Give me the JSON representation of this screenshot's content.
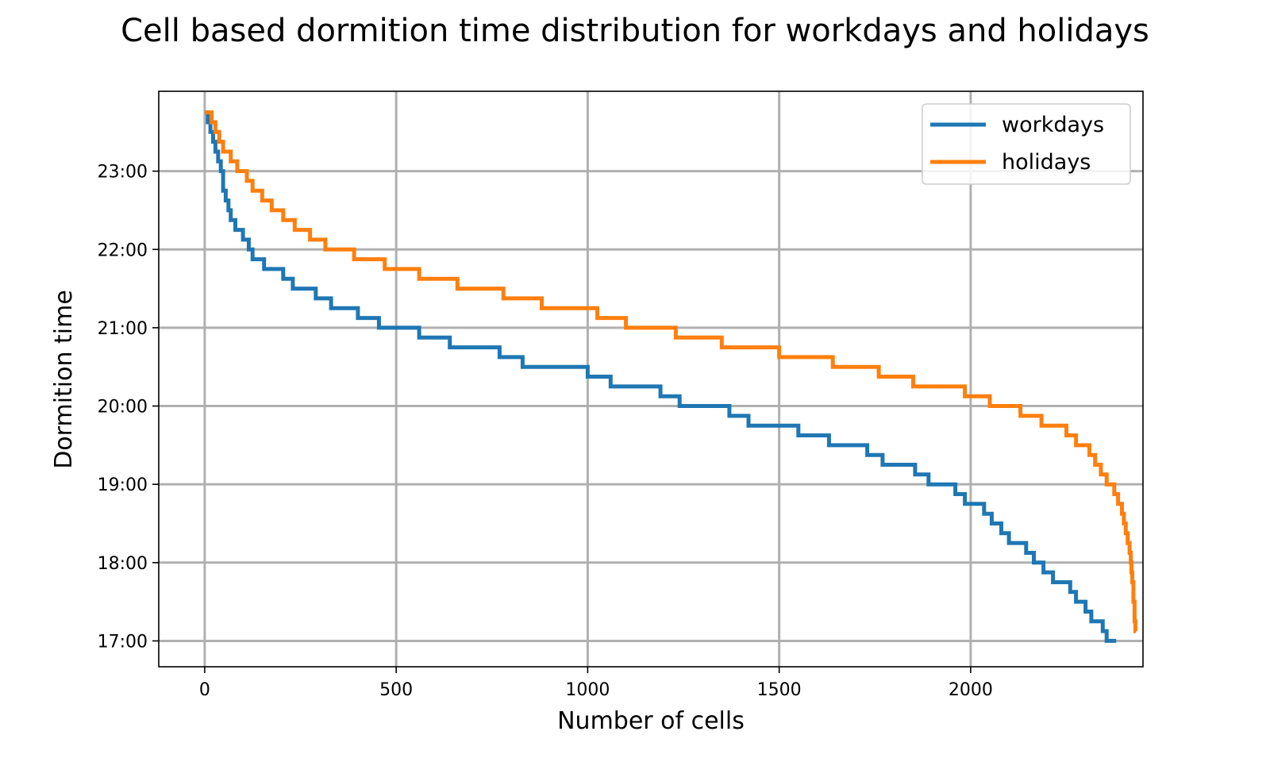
{
  "chart_data": {
    "type": "line",
    "title": "Cell based dormition time distribution for workdays and holidays",
    "xlabel": "Number of cells",
    "ylabel": "Dormition time",
    "xlim": [
      -120,
      2450
    ],
    "ylim": [
      16.67,
      24.02
    ],
    "x_ticks": [
      0,
      500,
      1000,
      1500,
      2000
    ],
    "y_ticks": [
      {
        "value": 17,
        "label": "17:00"
      },
      {
        "value": 18,
        "label": "18:00"
      },
      {
        "value": 19,
        "label": "19:00"
      },
      {
        "value": 20,
        "label": "20:00"
      },
      {
        "value": 21,
        "label": "21:00"
      },
      {
        "value": 22,
        "label": "22:00"
      },
      {
        "value": 23,
        "label": "23:00"
      }
    ],
    "grid": true,
    "legend_position": "top-right",
    "series": [
      {
        "name": "workdays",
        "color": "#1f77b4",
        "points": [
          [
            0,
            23.75
          ],
          [
            8,
            23.75
          ],
          [
            8,
            23.625
          ],
          [
            15,
            23.625
          ],
          [
            15,
            23.5
          ],
          [
            22,
            23.5
          ],
          [
            22,
            23.375
          ],
          [
            28,
            23.375
          ],
          [
            28,
            23.25
          ],
          [
            35,
            23.25
          ],
          [
            35,
            23.125
          ],
          [
            42,
            23.125
          ],
          [
            42,
            23.0
          ],
          [
            48,
            23.0
          ],
          [
            48,
            22.75
          ],
          [
            55,
            22.75
          ],
          [
            55,
            22.625
          ],
          [
            62,
            22.625
          ],
          [
            62,
            22.5
          ],
          [
            68,
            22.5
          ],
          [
            68,
            22.375
          ],
          [
            80,
            22.375
          ],
          [
            80,
            22.25
          ],
          [
            100,
            22.25
          ],
          [
            100,
            22.125
          ],
          [
            115,
            22.125
          ],
          [
            115,
            22.0
          ],
          [
            125,
            22.0
          ],
          [
            125,
            21.875
          ],
          [
            155,
            21.875
          ],
          [
            155,
            21.75
          ],
          [
            205,
            21.75
          ],
          [
            205,
            21.625
          ],
          [
            230,
            21.625
          ],
          [
            230,
            21.5
          ],
          [
            290,
            21.5
          ],
          [
            290,
            21.375
          ],
          [
            330,
            21.375
          ],
          [
            330,
            21.25
          ],
          [
            400,
            21.25
          ],
          [
            400,
            21.125
          ],
          [
            455,
            21.125
          ],
          [
            455,
            21.0
          ],
          [
            560,
            21.0
          ],
          [
            560,
            20.875
          ],
          [
            640,
            20.875
          ],
          [
            640,
            20.75
          ],
          [
            770,
            20.75
          ],
          [
            770,
            20.625
          ],
          [
            830,
            20.625
          ],
          [
            830,
            20.5
          ],
          [
            1000,
            20.5
          ],
          [
            1000,
            20.375
          ],
          [
            1060,
            20.375
          ],
          [
            1060,
            20.25
          ],
          [
            1190,
            20.25
          ],
          [
            1190,
            20.125
          ],
          [
            1240,
            20.125
          ],
          [
            1240,
            20.0
          ],
          [
            1370,
            20.0
          ],
          [
            1370,
            19.875
          ],
          [
            1420,
            19.875
          ],
          [
            1420,
            19.75
          ],
          [
            1550,
            19.75
          ],
          [
            1550,
            19.625
          ],
          [
            1630,
            19.625
          ],
          [
            1630,
            19.5
          ],
          [
            1730,
            19.5
          ],
          [
            1730,
            19.375
          ],
          [
            1770,
            19.375
          ],
          [
            1770,
            19.25
          ],
          [
            1855,
            19.25
          ],
          [
            1855,
            19.125
          ],
          [
            1890,
            19.125
          ],
          [
            1890,
            19.0
          ],
          [
            1960,
            19.0
          ],
          [
            1960,
            18.875
          ],
          [
            1985,
            18.875
          ],
          [
            1985,
            18.75
          ],
          [
            2035,
            18.75
          ],
          [
            2035,
            18.625
          ],
          [
            2055,
            18.625
          ],
          [
            2055,
            18.5
          ],
          [
            2080,
            18.5
          ],
          [
            2080,
            18.375
          ],
          [
            2100,
            18.375
          ],
          [
            2100,
            18.25
          ],
          [
            2145,
            18.25
          ],
          [
            2145,
            18.125
          ],
          [
            2165,
            18.125
          ],
          [
            2165,
            18.0
          ],
          [
            2190,
            18.0
          ],
          [
            2190,
            17.875
          ],
          [
            2215,
            17.875
          ],
          [
            2215,
            17.75
          ],
          [
            2260,
            17.75
          ],
          [
            2260,
            17.625
          ],
          [
            2275,
            17.625
          ],
          [
            2275,
            17.5
          ],
          [
            2300,
            17.5
          ],
          [
            2300,
            17.375
          ],
          [
            2315,
            17.375
          ],
          [
            2315,
            17.25
          ],
          [
            2345,
            17.25
          ],
          [
            2345,
            17.125
          ],
          [
            2355,
            17.125
          ],
          [
            2355,
            17.0
          ],
          [
            2380,
            17.0
          ]
        ]
      },
      {
        "name": "holidays",
        "color": "#ff7f0e",
        "points": [
          [
            0,
            23.75
          ],
          [
            18,
            23.75
          ],
          [
            18,
            23.625
          ],
          [
            28,
            23.625
          ],
          [
            28,
            23.5
          ],
          [
            38,
            23.5
          ],
          [
            38,
            23.375
          ],
          [
            48,
            23.375
          ],
          [
            48,
            23.25
          ],
          [
            68,
            23.25
          ],
          [
            68,
            23.125
          ],
          [
            85,
            23.125
          ],
          [
            85,
            23.0
          ],
          [
            110,
            23.0
          ],
          [
            110,
            22.875
          ],
          [
            125,
            22.875
          ],
          [
            125,
            22.75
          ],
          [
            150,
            22.75
          ],
          [
            150,
            22.625
          ],
          [
            175,
            22.625
          ],
          [
            175,
            22.5
          ],
          [
            205,
            22.5
          ],
          [
            205,
            22.375
          ],
          [
            235,
            22.375
          ],
          [
            235,
            22.25
          ],
          [
            275,
            22.25
          ],
          [
            275,
            22.125
          ],
          [
            315,
            22.125
          ],
          [
            315,
            22.0
          ],
          [
            390,
            22.0
          ],
          [
            390,
            21.875
          ],
          [
            470,
            21.875
          ],
          [
            470,
            21.75
          ],
          [
            560,
            21.75
          ],
          [
            560,
            21.625
          ],
          [
            660,
            21.625
          ],
          [
            660,
            21.5
          ],
          [
            780,
            21.5
          ],
          [
            780,
            21.375
          ],
          [
            880,
            21.375
          ],
          [
            880,
            21.25
          ],
          [
            1025,
            21.25
          ],
          [
            1025,
            21.125
          ],
          [
            1100,
            21.125
          ],
          [
            1100,
            21.0
          ],
          [
            1230,
            21.0
          ],
          [
            1230,
            20.875
          ],
          [
            1350,
            20.875
          ],
          [
            1350,
            20.75
          ],
          [
            1500,
            20.75
          ],
          [
            1500,
            20.625
          ],
          [
            1640,
            20.625
          ],
          [
            1640,
            20.5
          ],
          [
            1760,
            20.5
          ],
          [
            1760,
            20.375
          ],
          [
            1850,
            20.375
          ],
          [
            1850,
            20.25
          ],
          [
            1985,
            20.25
          ],
          [
            1985,
            20.125
          ],
          [
            2050,
            20.125
          ],
          [
            2050,
            20.0
          ],
          [
            2130,
            20.0
          ],
          [
            2130,
            19.875
          ],
          [
            2185,
            19.875
          ],
          [
            2185,
            19.75
          ],
          [
            2250,
            19.75
          ],
          [
            2250,
            19.625
          ],
          [
            2275,
            19.625
          ],
          [
            2275,
            19.5
          ],
          [
            2310,
            19.5
          ],
          [
            2310,
            19.375
          ],
          [
            2325,
            19.375
          ],
          [
            2325,
            19.25
          ],
          [
            2340,
            19.25
          ],
          [
            2340,
            19.125
          ],
          [
            2355,
            19.125
          ],
          [
            2355,
            19.0
          ],
          [
            2375,
            19.0
          ],
          [
            2375,
            18.875
          ],
          [
            2385,
            18.875
          ],
          [
            2385,
            18.75
          ],
          [
            2395,
            18.75
          ],
          [
            2395,
            18.625
          ],
          [
            2400,
            18.625
          ],
          [
            2400,
            18.5
          ],
          [
            2405,
            18.5
          ],
          [
            2405,
            18.375
          ],
          [
            2410,
            18.375
          ],
          [
            2410,
            18.25
          ],
          [
            2415,
            18.25
          ],
          [
            2415,
            18.125
          ],
          [
            2418,
            18.125
          ],
          [
            2418,
            18.0
          ],
          [
            2420,
            18.0
          ],
          [
            2420,
            17.875
          ],
          [
            2422,
            17.875
          ],
          [
            2422,
            17.75
          ],
          [
            2425,
            17.75
          ],
          [
            2425,
            17.5
          ],
          [
            2428,
            17.5
          ],
          [
            2428,
            17.25
          ],
          [
            2430,
            17.25
          ],
          [
            2430,
            17.125
          ],
          [
            2432,
            17.125
          ]
        ]
      }
    ]
  }
}
